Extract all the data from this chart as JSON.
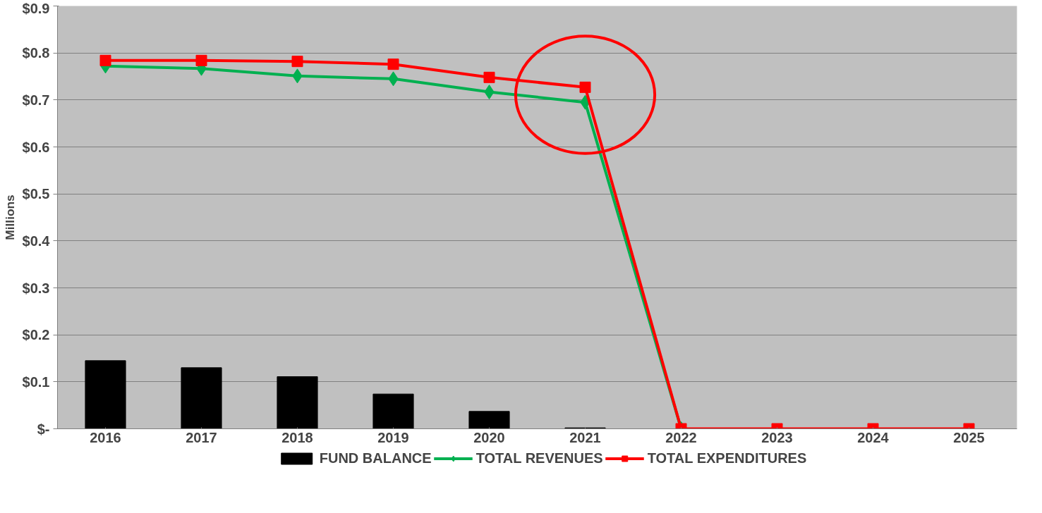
{
  "chart_data": {
    "type": "bar",
    "ylabel": "Millions",
    "categories": [
      "2016",
      "2017",
      "2018",
      "2019",
      "2020",
      "2021",
      "2022",
      "2023",
      "2024",
      "2025"
    ],
    "series": [
      {
        "name": "FUND BALANCE",
        "color": "#000000",
        "values": [
          0.145,
          0.13,
          0.111,
          0.074,
          0.037,
          0.002,
          0,
          0,
          0,
          0
        ]
      },
      {
        "name": "TOTAL REVENUES",
        "type": "line",
        "marker": "diamond",
        "color": "#00b050",
        "values": [
          0.772,
          0.767,
          0.751,
          0.745,
          0.717,
          0.695,
          0,
          null,
          null,
          null
        ]
      },
      {
        "name": "TOTAL EXPENDITURES",
        "type": "line",
        "marker": "square",
        "color": "#ff0000",
        "values": [
          0.784,
          0.784,
          0.782,
          0.776,
          0.748,
          0.727,
          0,
          0,
          0,
          0
        ]
      }
    ],
    "ylim": [
      0,
      0.9
    ],
    "yticks": [
      {
        "value": 0,
        "label": "$-"
      },
      {
        "value": 0.1,
        "label": "$0.1"
      },
      {
        "value": 0.2,
        "label": "$0.2"
      },
      {
        "value": 0.3,
        "label": "$0.3"
      },
      {
        "value": 0.4,
        "label": "$0.4"
      },
      {
        "value": 0.5,
        "label": "$0.5"
      },
      {
        "value": 0.6,
        "label": "$0.6"
      },
      {
        "value": 0.7,
        "label": "$0.7"
      },
      {
        "value": 0.8,
        "label": "$0.8"
      },
      {
        "value": 0.9,
        "label": "$0.9"
      }
    ],
    "grid": "y",
    "legend": "bottom"
  }
}
